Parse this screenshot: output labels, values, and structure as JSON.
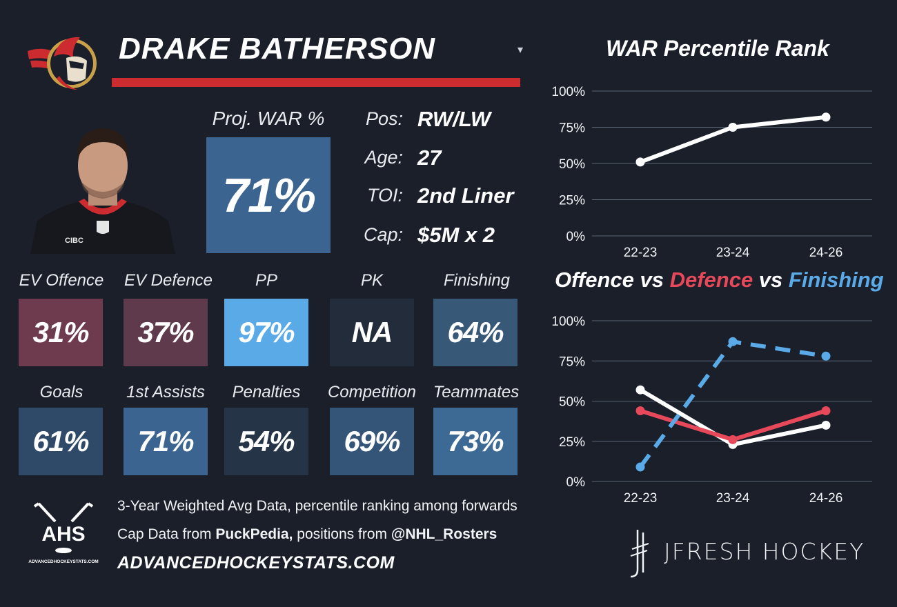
{
  "header": {
    "player_name": "DRAKE BATHERSON",
    "dropdown_glyph": "▾",
    "team_logo_icon": "senators-logo-icon",
    "accent_color": "#cc2b30"
  },
  "projection": {
    "label": "Proj. WAR %",
    "value": "71%"
  },
  "info": {
    "pos_label": "Pos:",
    "pos_value": "RW/LW",
    "age_label": "Age:",
    "age_value": "27",
    "toi_label": "TOI:",
    "toi_value": "2nd Liner",
    "cap_label": "Cap:",
    "cap_value": "$5M x 2"
  },
  "tiles": [
    {
      "label": "EV Offence",
      "value": "31%",
      "color": "#6e3b4e"
    },
    {
      "label": "EV Defence",
      "value": "37%",
      "color": "#5e3a4c"
    },
    {
      "label": "PP",
      "value": "97%",
      "color": "#5aaae8"
    },
    {
      "label": "PK",
      "value": "NA",
      "color": "#232c3a"
    },
    {
      "label": "Finishing",
      "value": "64%",
      "color": "#385878"
    },
    {
      "label": "Goals",
      "value": "61%",
      "color": "#2f4a68"
    },
    {
      "label": "1st Assists",
      "value": "71%",
      "color": "#3b6590"
    },
    {
      "label": "Penalties",
      "value": "54%",
      "color": "#263447"
    },
    {
      "label": "Competition",
      "value": "69%",
      "color": "#345478"
    },
    {
      "label": "Teammates",
      "value": "73%",
      "color": "#3d6a95"
    }
  ],
  "footer": {
    "line1": "3-Year Weighted Avg Data, percentile ranking among forwards",
    "line2_prefix": "Cap Data from ",
    "line2_bold1": "PuckPedia,",
    "line2_mid": " positions from ",
    "line2_bold2": "@NHL_Rosters",
    "site": "ADVANCEDHOCKEYSTATS.COM",
    "ahs_logo_text": "AHS",
    "ahs_logo_small": "ADVANCEDHOCKEYSTATS.COM",
    "brand": "JFRESH HOCKEY"
  },
  "chart_data": [
    {
      "type": "line",
      "title": "WAR Percentile Rank",
      "categories": [
        "22-23",
        "23-24",
        "24-26"
      ],
      "series": [
        {
          "values": [
            51,
            75,
            82
          ],
          "color": "#ffffff",
          "dashed": false
        }
      ],
      "ylim": [
        0,
        100
      ],
      "yticks": [
        0,
        25,
        50,
        75,
        100
      ],
      "ytick_labels": [
        "0%",
        "25%",
        "50%",
        "75%",
        "100%"
      ],
      "grid": true
    },
    {
      "type": "line",
      "title": "Offence vs Defence vs Finishing",
      "title_parts": [
        "Offence",
        " vs ",
        "Defence",
        " vs ",
        "Finishing"
      ],
      "categories": [
        "22-23",
        "23-24",
        "24-26"
      ],
      "series": [
        {
          "name": "Offence",
          "values": [
            57,
            23,
            35
          ],
          "color": "#ffffff",
          "dashed": false
        },
        {
          "name": "Defence",
          "values": [
            44,
            26,
            44
          ],
          "color": "#e8495a",
          "dashed": false
        },
        {
          "name": "Finishing",
          "values": [
            9,
            87,
            78
          ],
          "color": "#5aaae8",
          "dashed": true
        }
      ],
      "ylim": [
        0,
        100
      ],
      "yticks": [
        0,
        25,
        50,
        75,
        100
      ],
      "ytick_labels": [
        "0%",
        "25%",
        "50%",
        "75%",
        "100%"
      ],
      "grid": true
    }
  ]
}
